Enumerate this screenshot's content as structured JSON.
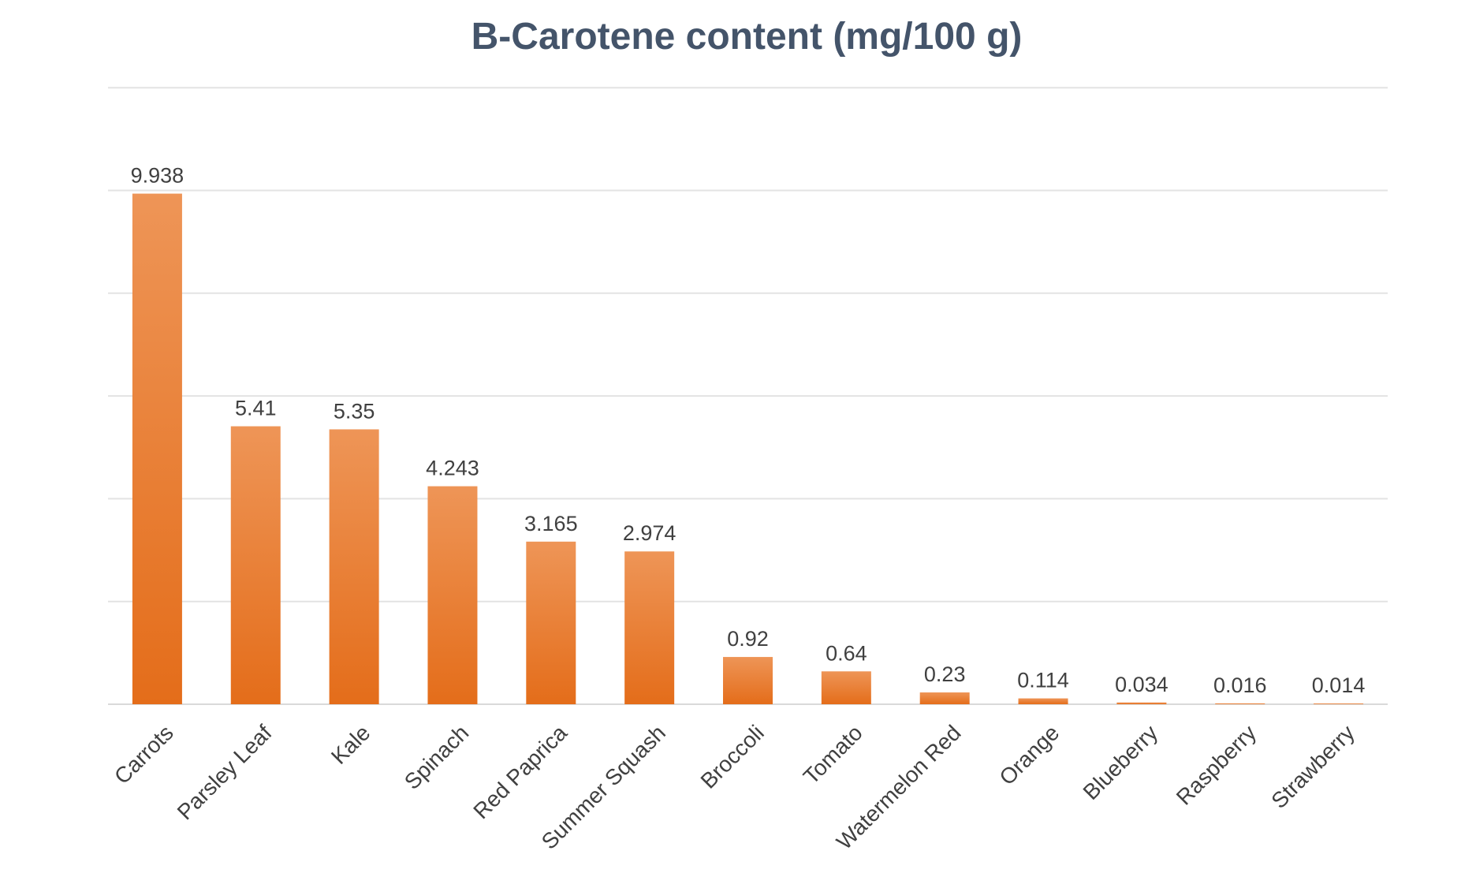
{
  "chart_data": {
    "type": "bar",
    "title": "B-Carotene content (mg/100 g)",
    "categories": [
      "Carrots",
      "Parsley Leaf",
      "Kale",
      "Spinach",
      "Red Paprica",
      "Summer Squash",
      "Broccoli",
      "Tomato",
      "Watermelon Red",
      "Orange",
      "Blueberry",
      "Raspberry",
      "Strawberry"
    ],
    "values": [
      9.938,
      5.41,
      5.35,
      4.243,
      3.165,
      2.974,
      0.92,
      0.64,
      0.23,
      0.114,
      0.034,
      0.016,
      0.014
    ],
    "data_labels": [
      "9.938",
      "5.41",
      "5.35",
      "4.243",
      "3.165",
      "2.974",
      "0.92",
      "0.64",
      "0.23",
      "0.114",
      "0.034",
      "0.016",
      "0.014"
    ],
    "xlabel": "",
    "ylabel": "",
    "ylim": [
      0,
      12
    ],
    "gridline_step": 2,
    "grid": true,
    "legend": "none",
    "colors": {
      "bar_top": "#ee9557",
      "bar_bottom": "#e46d1a",
      "title": "#44546a",
      "text": "#404040",
      "grid": "#e3e3e3"
    }
  }
}
